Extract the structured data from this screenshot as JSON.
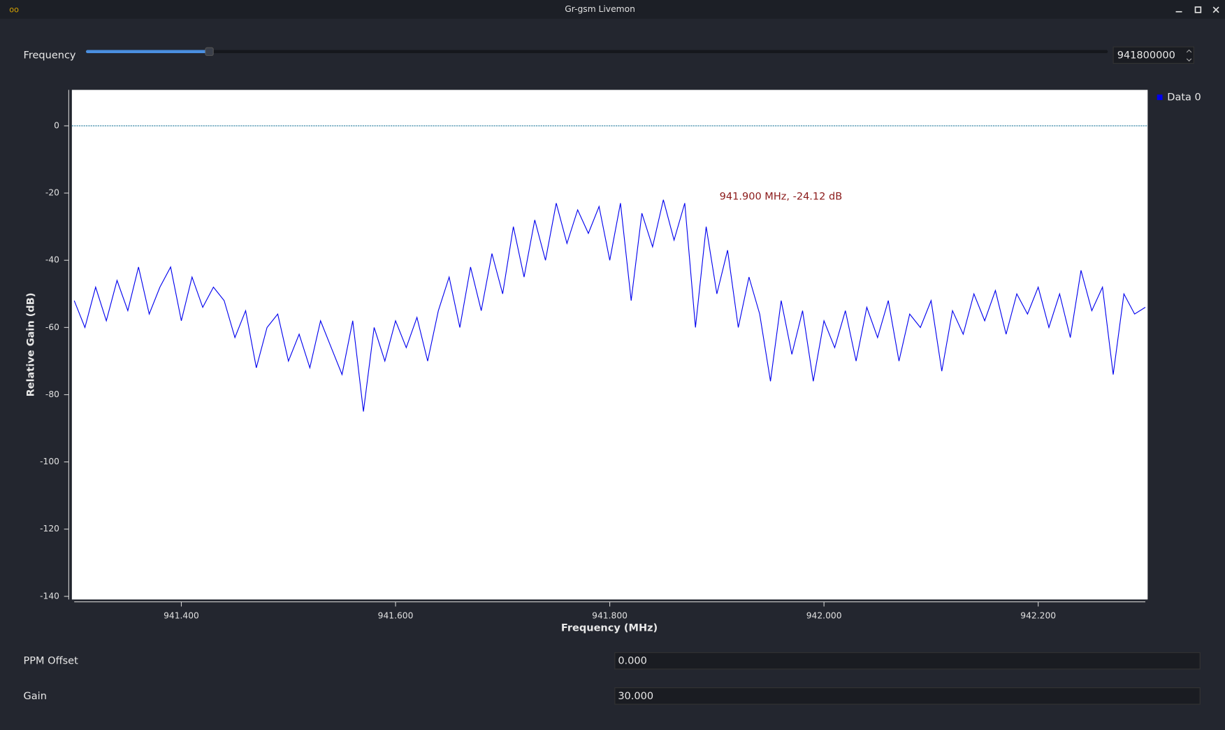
{
  "window": {
    "title": "Gr-gsm Livemon"
  },
  "frequency": {
    "label": "Frequency",
    "value": "941800000"
  },
  "chart_data": {
    "type": "line",
    "x_label": "Frequency (MHz)",
    "y_label": "Relative Gain (dB)",
    "annotation": "941.900 MHz, -24.12 dB",
    "xlim": [
      941.3,
      942.3
    ],
    "ylim": [
      -140,
      10
    ],
    "xticks": [
      {
        "value": 941.4,
        "label": "941.400"
      },
      {
        "value": 941.6,
        "label": "941.600"
      },
      {
        "value": 941.8,
        "label": "941.800"
      },
      {
        "value": 942.0,
        "label": "942.000"
      },
      {
        "value": 942.2,
        "label": "942.200"
      }
    ],
    "yticks": [
      0,
      -20,
      -40,
      -60,
      -80,
      -100,
      -120,
      -140
    ],
    "hline": 0,
    "x": [
      941.3,
      941.31,
      941.32,
      941.33,
      941.34,
      941.35,
      941.36,
      941.37,
      941.38,
      941.39,
      941.4,
      941.41,
      941.42,
      941.43,
      941.44,
      941.45,
      941.46,
      941.47,
      941.48,
      941.49,
      941.5,
      941.51,
      941.52,
      941.53,
      941.54,
      941.55,
      941.56,
      941.57,
      941.58,
      941.59,
      941.6,
      941.61,
      941.62,
      941.63,
      941.64,
      941.65,
      941.66,
      941.67,
      941.68,
      941.69,
      941.7,
      941.71,
      941.72,
      941.73,
      941.74,
      941.75,
      941.76,
      941.77,
      941.78,
      941.79,
      941.8,
      941.81,
      941.82,
      941.83,
      941.84,
      941.85,
      941.86,
      941.87,
      941.88,
      941.89,
      941.9,
      941.91,
      941.92,
      941.93,
      941.94,
      941.95,
      941.96,
      941.97,
      941.98,
      941.99,
      942.0,
      942.01,
      942.02,
      942.03,
      942.04,
      942.05,
      942.06,
      942.07,
      942.08,
      942.09,
      942.1,
      942.11,
      942.12,
      942.13,
      942.14,
      942.15,
      942.16,
      942.17,
      942.18,
      942.19,
      942.2,
      942.21,
      942.22,
      942.23,
      942.24,
      942.25,
      942.26,
      942.27,
      942.28,
      942.29,
      942.3
    ],
    "series": [
      {
        "name": "Data 0",
        "color": "#0000ee",
        "values": [
          -52,
          -60,
          -48,
          -58,
          -46,
          -55,
          -42,
          -56,
          -48,
          -42,
          -58,
          -45,
          -54,
          -48,
          -52,
          -63,
          -55,
          -72,
          -60,
          -56,
          -70,
          -62,
          -72,
          -58,
          -66,
          -74,
          -58,
          -85,
          -60,
          -70,
          -58,
          -66,
          -57,
          -70,
          -55,
          -45,
          -60,
          -42,
          -55,
          -38,
          -50,
          -30,
          -45,
          -28,
          -40,
          -23,
          -35,
          -25,
          -32,
          -24,
          -40,
          -23,
          -52,
          -26,
          -36,
          -22,
          -34,
          -23,
          -60,
          -30,
          -50,
          -37,
          -60,
          -45,
          -56,
          -76,
          -52,
          -68,
          -55,
          -76,
          -58,
          -66,
          -55,
          -70,
          -54,
          -63,
          -52,
          -70,
          -56,
          -60,
          -52,
          -73,
          -55,
          -62,
          -50,
          -58,
          -49,
          -62,
          -50,
          -56,
          -48,
          -60,
          -50,
          -63,
          -43,
          -55,
          -48,
          -74,
          -50,
          -56,
          -54
        ]
      }
    ]
  },
  "ppm_offset": {
    "label": "PPM Offset",
    "value": "0.000"
  },
  "gain": {
    "label": "Gain",
    "value": "30.000"
  }
}
